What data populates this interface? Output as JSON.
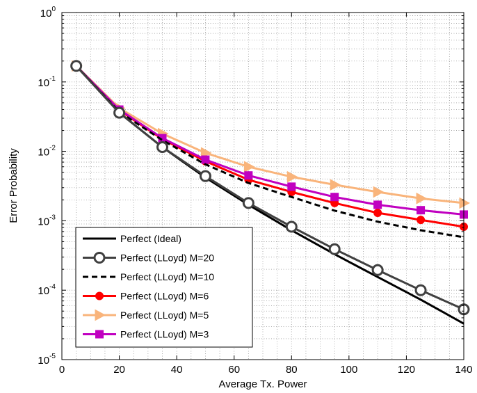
{
  "chart_data": {
    "type": "line",
    "title": "",
    "xlabel": "Average Tx. Power",
    "ylabel": "Error Probability",
    "xlim": [
      0,
      140
    ],
    "ylim": [
      1e-05,
      1
    ],
    "yscale": "log",
    "grid": "on (major and minor, dotted)",
    "legend_position": "bottom-left",
    "xticks": [
      0,
      20,
      40,
      60,
      80,
      100,
      120,
      140
    ],
    "yticks": [
      {
        "value": 1e-05,
        "base": "10",
        "exp": "-5"
      },
      {
        "value": 0.0001,
        "base": "10",
        "exp": "-4"
      },
      {
        "value": 0.001,
        "base": "10",
        "exp": "-3"
      },
      {
        "value": 0.01,
        "base": "10",
        "exp": "-2"
      },
      {
        "value": 0.1,
        "base": "10",
        "exp": "-1"
      },
      {
        "value": 1,
        "base": "10",
        "exp": "0"
      }
    ],
    "series": [
      {
        "name": "Perfect (Ideal)",
        "color": "#000000",
        "dash": "solid",
        "marker": "none",
        "width": 3,
        "x": [
          5,
          20,
          35,
          50,
          65,
          80,
          95,
          110,
          125,
          140
        ],
        "y": [
          0.17,
          0.036,
          0.0115,
          0.0042,
          0.0017,
          0.00073,
          0.00033,
          0.000155,
          7.3e-05,
          3.3e-05
        ]
      },
      {
        "name": "Perfect (LLoyd) M=20",
        "color": "#404040",
        "dash": "solid",
        "marker": "circle",
        "width": 3,
        "x": [
          5,
          20,
          35,
          50,
          65,
          80,
          95,
          110,
          125,
          140
        ],
        "y": [
          0.17,
          0.036,
          0.0115,
          0.0044,
          0.0018,
          0.00082,
          0.00039,
          0.000195,
          0.0001,
          5.3e-05
        ]
      },
      {
        "name": "Perfect (LLoyd) M=10",
        "color": "#000000",
        "dash": "dashed",
        "marker": "none",
        "width": 3,
        "x": [
          5,
          20,
          35,
          50,
          65,
          80,
          95,
          110,
          125,
          140
        ],
        "y": [
          0.17,
          0.037,
          0.0145,
          0.0065,
          0.0035,
          0.0022,
          0.0014,
          0.00097,
          0.00073,
          0.00058
        ]
      },
      {
        "name": "Perfect (LLoyd) M=6",
        "color": "#ff0000",
        "dash": "solid",
        "marker": "dot",
        "width": 3,
        "x": [
          5,
          20,
          35,
          50,
          65,
          80,
          95,
          110,
          125,
          140
        ],
        "y": [
          0.17,
          0.039,
          0.015,
          0.0072,
          0.0039,
          0.0026,
          0.0018,
          0.0013,
          0.00103,
          0.00082
        ]
      },
      {
        "name": "Perfect (LLoyd) M=5",
        "color": "#f9b47b",
        "dash": "solid",
        "marker": "triangle-right",
        "width": 3,
        "x": [
          5,
          20,
          35,
          50,
          65,
          80,
          95,
          110,
          125,
          140
        ],
        "y": [
          0.17,
          0.042,
          0.018,
          0.0095,
          0.006,
          0.0043,
          0.0033,
          0.0026,
          0.0021,
          0.0018
        ]
      },
      {
        "name": "Perfect (LLoyd) M=3",
        "color": "#c000c0",
        "dash": "solid",
        "marker": "square",
        "width": 3,
        "x": [
          5,
          20,
          35,
          50,
          65,
          80,
          95,
          110,
          125,
          140
        ],
        "y": [
          0.17,
          0.04,
          0.0155,
          0.0076,
          0.0045,
          0.0031,
          0.0022,
          0.0017,
          0.00142,
          0.00123
        ]
      }
    ]
  }
}
